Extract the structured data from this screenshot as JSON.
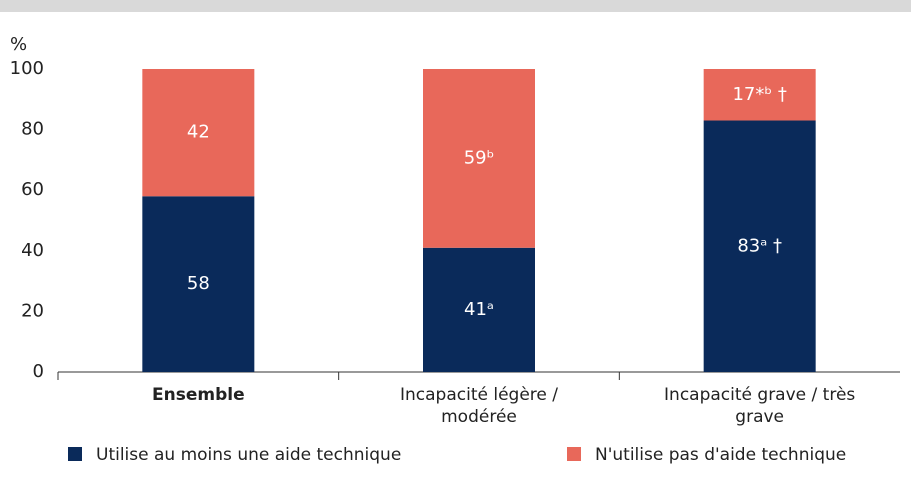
{
  "chart_data": {
    "type": "stacked_bar",
    "y_label": "%",
    "categories": [
      "Ensemble",
      "Incapacité légère / modérée",
      "Incapacité grave / très grave"
    ],
    "series": [
      {
        "name": "Utilise au moins une aide technique",
        "color": "#0a2a5a",
        "values": [
          58,
          41,
          83
        ],
        "value_labels": [
          "58",
          "41ᵃ",
          "83ᵃ †"
        ]
      },
      {
        "name": "N'utilise pas d'aide technique",
        "color": "#e8685a",
        "values": [
          42,
          59,
          17
        ],
        "value_labels": [
          "42",
          "59ᵇ",
          "17*ᵇ †"
        ]
      }
    ],
    "ylim": [
      0,
      100
    ],
    "yticks": [
      0,
      20,
      40,
      60,
      80,
      100
    ],
    "legend": "bottom"
  }
}
